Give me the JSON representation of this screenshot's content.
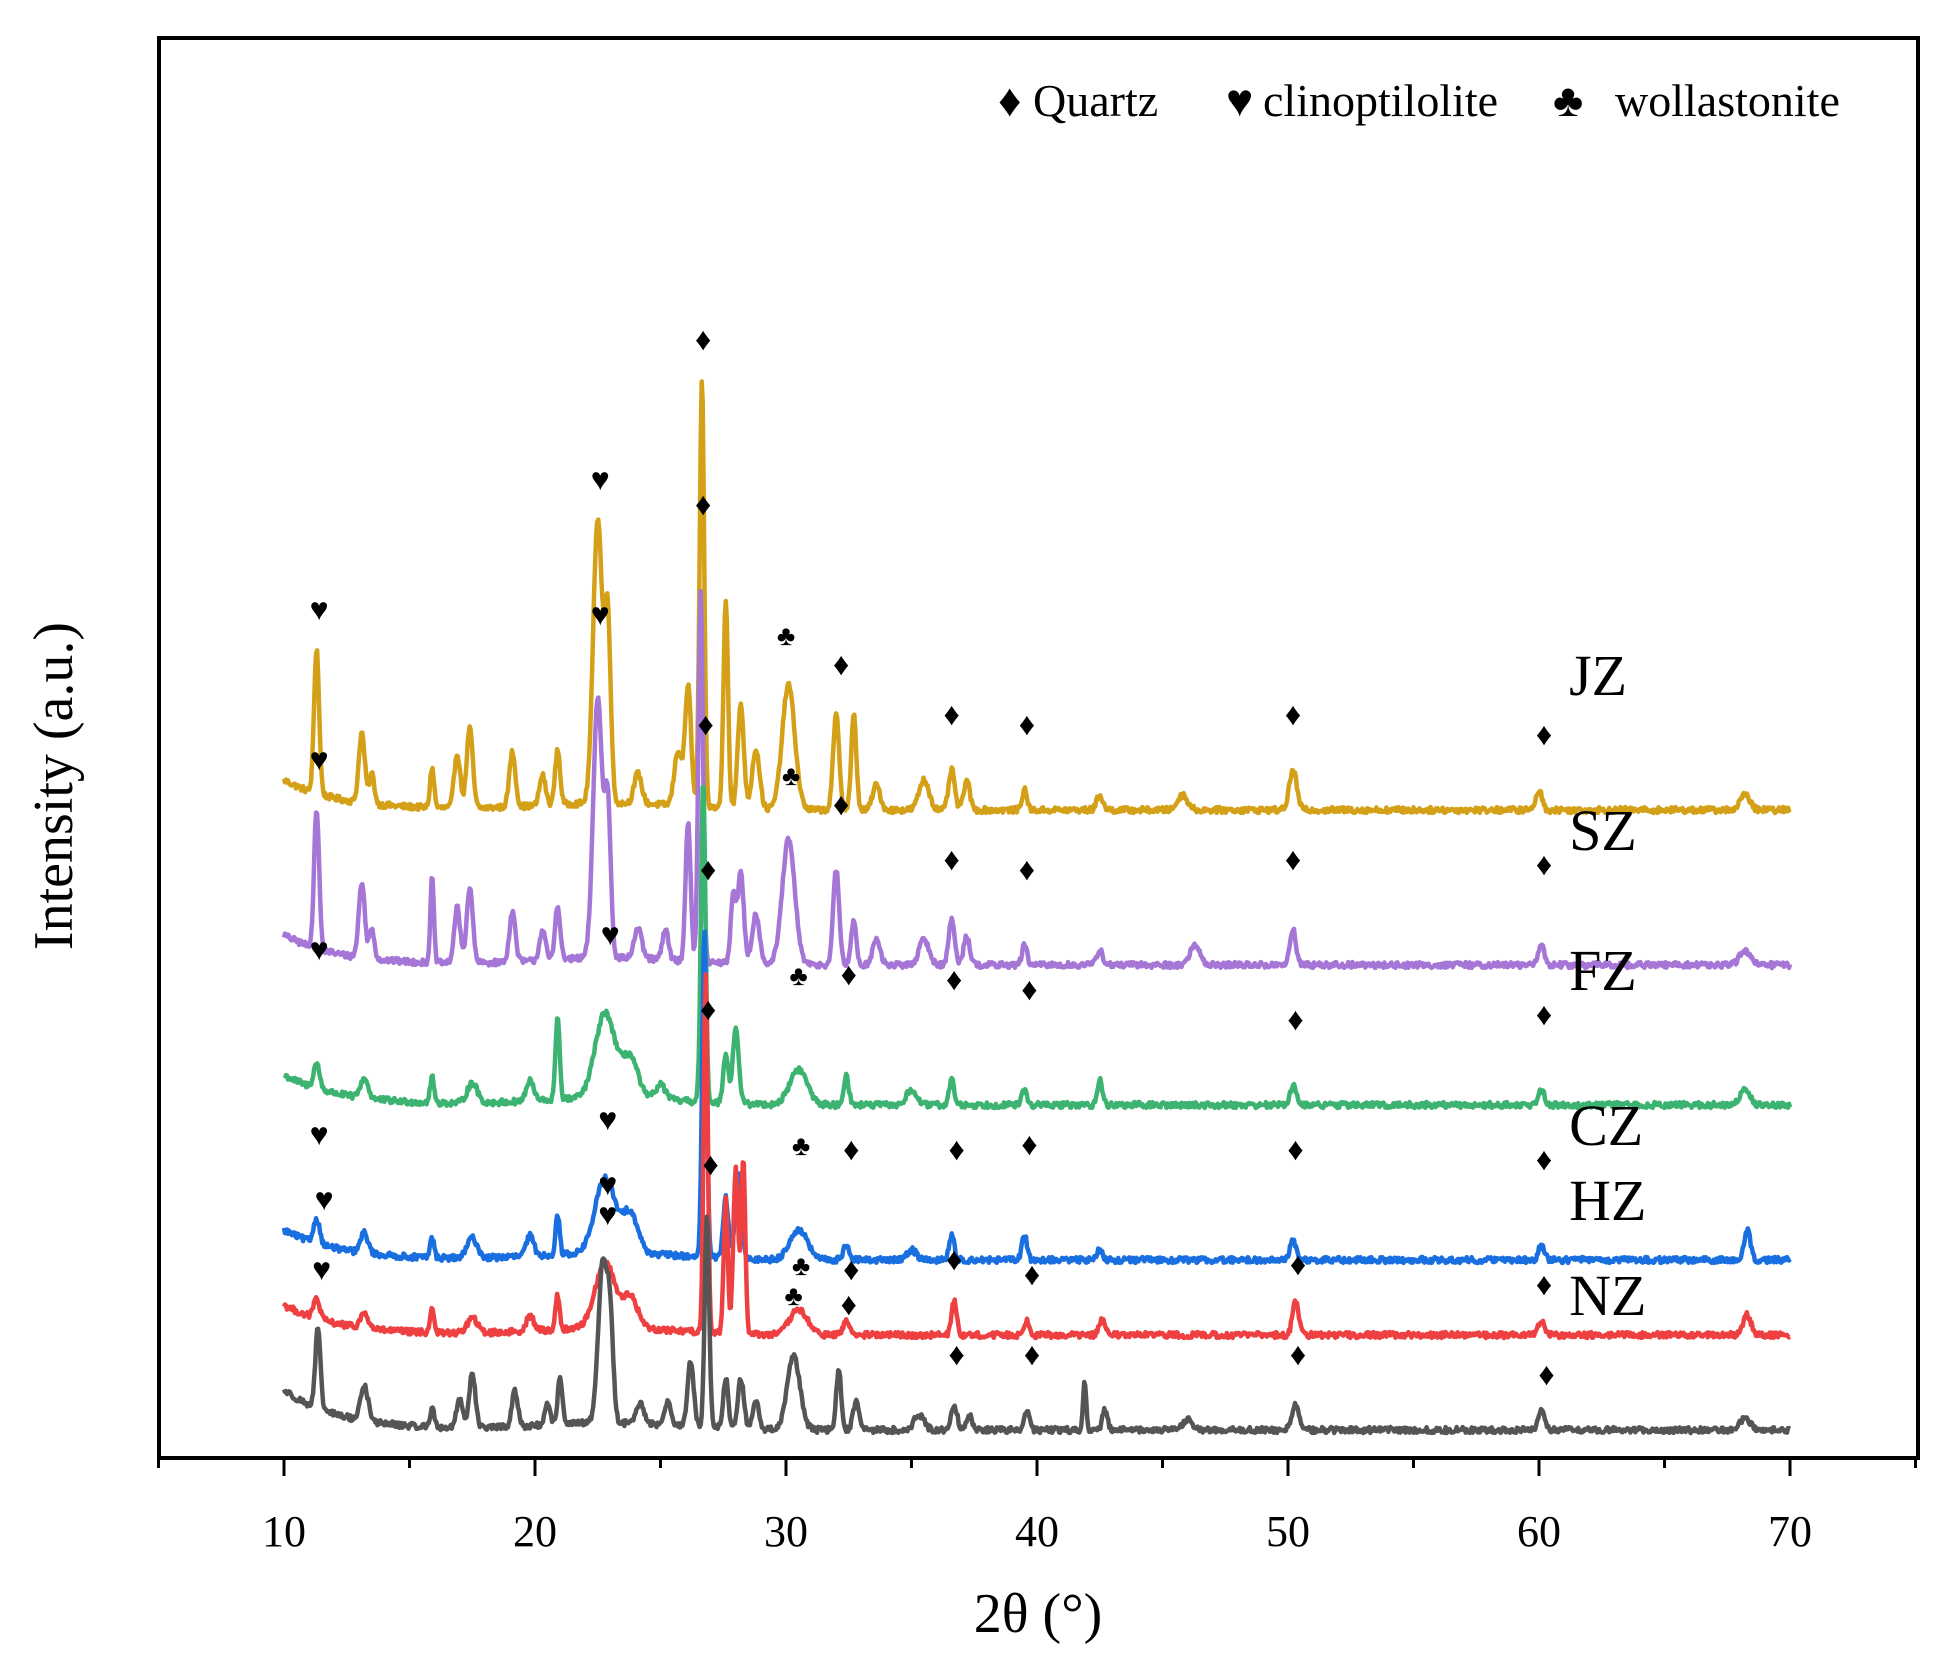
{
  "chart_data": {
    "type": "line",
    "title": "",
    "xlabel": "2θ (°)",
    "ylabel": "Intensity (a.u.)",
    "xlim": [
      5,
      75
    ],
    "xticks": [
      10,
      20,
      30,
      40,
      50,
      60,
      70
    ],
    "yticks": [],
    "legend": {
      "position": "top-right",
      "entries": [
        {
          "symbol": "diamond",
          "glyph": "♦",
          "label": "Quartz"
        },
        {
          "symbol": "heart",
          "glyph": "♥",
          "label": "clinoptilolite"
        },
        {
          "symbol": "club",
          "glyph": "♣",
          "label": "wollastonite"
        }
      ]
    },
    "series": [
      {
        "name": "JZ",
        "color": "#D4A017",
        "offset": 6.2,
        "background": 0.3,
        "peaks": [
          [
            11.3,
            1.45,
            0.1
          ],
          [
            13.1,
            0.7,
            0.12
          ],
          [
            13.5,
            0.3,
            0.1
          ],
          [
            15.9,
            0.4,
            0.08
          ],
          [
            16.9,
            0.55,
            0.12
          ],
          [
            17.4,
            0.8,
            0.12
          ],
          [
            19.1,
            0.55,
            0.12
          ],
          [
            20.3,
            0.3,
            0.12
          ],
          [
            20.9,
            0.55,
            0.1
          ],
          [
            22.5,
            2.85,
            0.18
          ],
          [
            22.9,
            1.8,
            0.12
          ],
          [
            24.1,
            0.3,
            0.15
          ],
          [
            25.7,
            0.55,
            0.15
          ],
          [
            26.1,
            1.2,
            0.12
          ],
          [
            26.65,
            4.25,
            0.09
          ],
          [
            27.6,
            2.1,
            0.09
          ],
          [
            28.2,
            1.05,
            0.12
          ],
          [
            28.8,
            0.6,
            0.15
          ],
          [
            30.1,
            1.25,
            0.25
          ],
          [
            32.0,
            0.95,
            0.12
          ],
          [
            32.7,
            0.95,
            0.1
          ],
          [
            33.6,
            0.25,
            0.15
          ],
          [
            35.5,
            0.3,
            0.2
          ],
          [
            36.6,
            0.4,
            0.12
          ],
          [
            37.2,
            0.3,
            0.12
          ],
          [
            39.5,
            0.2,
            0.1
          ],
          [
            42.5,
            0.15,
            0.12
          ],
          [
            45.8,
            0.15,
            0.2
          ],
          [
            50.2,
            0.4,
            0.15
          ],
          [
            60.0,
            0.2,
            0.12
          ],
          [
            68.2,
            0.15,
            0.2
          ]
        ],
        "markers": [
          {
            "type": "heart",
            "x": 11.4,
            "y": 8.1
          },
          {
            "type": "heart",
            "x": 22.6,
            "y": 9.4
          },
          {
            "type": "diamond",
            "x": 26.7,
            "y": 10.8
          },
          {
            "type": "club",
            "x": 30.0,
            "y": 7.85
          },
          {
            "type": "diamond",
            "x": 32.2,
            "y": 7.55
          },
          {
            "type": "diamond",
            "x": 36.6,
            "y": 7.05
          },
          {
            "type": "diamond",
            "x": 39.6,
            "y": 6.95
          },
          {
            "type": "diamond",
            "x": 50.2,
            "y": 7.05
          },
          {
            "type": "diamond",
            "x": 60.2,
            "y": 6.85
          }
        ]
      },
      {
        "name": "SZ",
        "color": "#A576D6",
        "offset": 4.65,
        "background": 0.3,
        "peaks": [
          [
            11.3,
            1.4,
            0.1
          ],
          [
            13.1,
            0.75,
            0.12
          ],
          [
            13.5,
            0.3,
            0.1
          ],
          [
            15.9,
            0.85,
            0.07
          ],
          [
            16.9,
            0.55,
            0.12
          ],
          [
            17.4,
            0.75,
            0.12
          ],
          [
            19.1,
            0.5,
            0.12
          ],
          [
            20.3,
            0.3,
            0.12
          ],
          [
            20.9,
            0.55,
            0.1
          ],
          [
            22.5,
            2.6,
            0.18
          ],
          [
            22.9,
            1.5,
            0.12
          ],
          [
            24.1,
            0.3,
            0.15
          ],
          [
            25.2,
            0.3,
            0.12
          ],
          [
            26.1,
            1.4,
            0.1
          ],
          [
            26.6,
            3.7,
            0.09
          ],
          [
            27.9,
            0.7,
            0.1
          ],
          [
            28.2,
            0.9,
            0.12
          ],
          [
            28.8,
            0.5,
            0.15
          ],
          [
            30.1,
            1.25,
            0.25
          ],
          [
            32.0,
            0.95,
            0.12
          ],
          [
            32.7,
            0.45,
            0.1
          ],
          [
            33.6,
            0.25,
            0.15
          ],
          [
            35.5,
            0.25,
            0.2
          ],
          [
            36.6,
            0.45,
            0.12
          ],
          [
            37.2,
            0.3,
            0.12
          ],
          [
            39.5,
            0.2,
            0.1
          ],
          [
            42.5,
            0.15,
            0.12
          ],
          [
            46.3,
            0.2,
            0.2
          ],
          [
            50.2,
            0.35,
            0.12
          ],
          [
            60.1,
            0.2,
            0.12
          ],
          [
            68.2,
            0.15,
            0.2
          ]
        ],
        "markers": [
          {
            "type": "heart",
            "x": 11.4,
            "y": 6.6
          },
          {
            "type": "heart",
            "x": 22.6,
            "y": 8.05
          },
          {
            "type": "diamond",
            "x": 26.7,
            "y": 9.15
          },
          {
            "type": "club",
            "x": 30.2,
            "y": 6.45
          },
          {
            "type": "diamond",
            "x": 32.2,
            "y": 6.15
          },
          {
            "type": "diamond",
            "x": 36.6,
            "y": 5.6
          },
          {
            "type": "diamond",
            "x": 39.6,
            "y": 5.5
          },
          {
            "type": "diamond",
            "x": 50.2,
            "y": 5.6
          },
          {
            "type": "diamond",
            "x": 60.2,
            "y": 5.55
          }
        ]
      },
      {
        "name": "FZ",
        "color": "#3CB371",
        "offset": 3.25,
        "background": 0.3,
        "peaks": [
          [
            11.3,
            0.25,
            0.12
          ],
          [
            13.2,
            0.2,
            0.15
          ],
          [
            15.9,
            0.25,
            0.08
          ],
          [
            17.5,
            0.2,
            0.2
          ],
          [
            19.8,
            0.2,
            0.15
          ],
          [
            20.9,
            0.85,
            0.08
          ],
          [
            22.8,
            0.85,
            0.4
          ],
          [
            23.8,
            0.4,
            0.3
          ],
          [
            25.0,
            0.15,
            0.2
          ],
          [
            26.7,
            3.2,
            0.09
          ],
          [
            27.6,
            0.5,
            0.1
          ],
          [
            28.0,
            0.75,
            0.12
          ],
          [
            30.5,
            0.35,
            0.35
          ],
          [
            32.4,
            0.3,
            0.1
          ],
          [
            35.0,
            0.15,
            0.2
          ],
          [
            36.6,
            0.25,
            0.1
          ],
          [
            39.5,
            0.15,
            0.1
          ],
          [
            42.5,
            0.25,
            0.1
          ],
          [
            50.2,
            0.2,
            0.12
          ],
          [
            60.1,
            0.15,
            0.12
          ],
          [
            68.2,
            0.15,
            0.2
          ]
        ],
        "markers": [
          {
            "type": "heart",
            "x": 11.4,
            "y": 4.7
          },
          {
            "type": "heart",
            "x": 23.0,
            "y": 4.85
          },
          {
            "type": "diamond",
            "x": 26.8,
            "y": 6.95
          },
          {
            "type": "club",
            "x": 30.5,
            "y": 4.45
          },
          {
            "type": "diamond",
            "x": 32.5,
            "y": 4.45
          },
          {
            "type": "diamond",
            "x": 36.7,
            "y": 4.4
          },
          {
            "type": "diamond",
            "x": 39.7,
            "y": 4.3
          },
          {
            "type": "diamond",
            "x": 50.3,
            "y": 4.0
          },
          {
            "type": "diamond",
            "x": 60.2,
            "y": 4.05
          }
        ]
      },
      {
        "name": "CZ",
        "color": "#1A6FE0",
        "offset": 1.7,
        "background": 0.3,
        "peaks": [
          [
            11.3,
            0.25,
            0.12
          ],
          [
            13.2,
            0.2,
            0.15
          ],
          [
            15.9,
            0.2,
            0.08
          ],
          [
            17.5,
            0.2,
            0.2
          ],
          [
            19.8,
            0.2,
            0.15
          ],
          [
            20.9,
            0.4,
            0.08
          ],
          [
            22.8,
            0.75,
            0.4
          ],
          [
            23.8,
            0.4,
            0.3
          ],
          [
            26.75,
            3.25,
            0.09
          ],
          [
            27.6,
            0.6,
            0.1
          ],
          [
            28.1,
            0.85,
            0.12
          ],
          [
            30.5,
            0.3,
            0.35
          ],
          [
            32.4,
            0.15,
            0.12
          ],
          [
            35.0,
            0.1,
            0.2
          ],
          [
            36.6,
            0.25,
            0.1
          ],
          [
            39.5,
            0.25,
            0.1
          ],
          [
            42.5,
            0.1,
            0.12
          ],
          [
            50.2,
            0.2,
            0.12
          ],
          [
            60.1,
            0.15,
            0.12
          ],
          [
            68.3,
            0.3,
            0.12
          ]
        ],
        "markers": [
          {
            "type": "heart",
            "x": 11.4,
            "y": 2.85
          },
          {
            "type": "heart",
            "x": 22.9,
            "y": 3.0
          },
          {
            "type": "diamond",
            "x": 26.9,
            "y": 5.5
          },
          {
            "type": "club",
            "x": 30.6,
            "y": 2.75
          },
          {
            "type": "diamond",
            "x": 32.6,
            "y": 2.7
          },
          {
            "type": "diamond",
            "x": 36.8,
            "y": 2.7
          },
          {
            "type": "diamond",
            "x": 39.7,
            "y": 2.75
          },
          {
            "type": "diamond",
            "x": 50.3,
            "y": 2.7
          },
          {
            "type": "diamond",
            "x": 60.2,
            "y": 2.6
          }
        ]
      },
      {
        "name": "HZ",
        "color": "#EE4040",
        "offset": 0.95,
        "background": 0.3,
        "peaks": [
          [
            11.3,
            0.2,
            0.12
          ],
          [
            13.2,
            0.15,
            0.15
          ],
          [
            15.9,
            0.25,
            0.08
          ],
          [
            17.5,
            0.15,
            0.2
          ],
          [
            19.8,
            0.15,
            0.15
          ],
          [
            20.9,
            0.35,
            0.08
          ],
          [
            22.8,
            0.65,
            0.4
          ],
          [
            23.8,
            0.3,
            0.3
          ],
          [
            26.8,
            3.6,
            0.08
          ],
          [
            27.6,
            1.35,
            0.08
          ],
          [
            28.0,
            1.65,
            0.1
          ],
          [
            28.3,
            1.75,
            0.08
          ],
          [
            30.5,
            0.25,
            0.35
          ],
          [
            32.4,
            0.15,
            0.12
          ],
          [
            36.7,
            0.35,
            0.1
          ],
          [
            39.6,
            0.15,
            0.1
          ],
          [
            42.6,
            0.15,
            0.12
          ],
          [
            50.3,
            0.35,
            0.12
          ],
          [
            60.1,
            0.15,
            0.12
          ],
          [
            68.3,
            0.2,
            0.15
          ]
        ],
        "markers": [
          {
            "type": "heart",
            "x": 11.6,
            "y": 2.2
          },
          {
            "type": "heart",
            "x": 22.9,
            "y": 2.35
          },
          {
            "type": "diamond",
            "x": 26.9,
            "y": 4.1
          },
          {
            "type": "club",
            "x": 30.6,
            "y": 1.55
          },
          {
            "type": "diamond",
            "x": 32.6,
            "y": 1.5
          },
          {
            "type": "diamond",
            "x": 36.7,
            "y": 1.6
          },
          {
            "type": "diamond",
            "x": 39.8,
            "y": 1.45
          },
          {
            "type": "diamond",
            "x": 50.4,
            "y": 1.55
          },
          {
            "type": "diamond",
            "x": 60.2,
            "y": 1.35
          }
        ]
      },
      {
        "name": "NZ",
        "color": "#555555",
        "offset": 0.0,
        "background": 0.4,
        "peaks": [
          [
            11.35,
            0.8,
            0.1
          ],
          [
            13.2,
            0.35,
            0.15
          ],
          [
            15.9,
            0.2,
            0.08
          ],
          [
            17.0,
            0.3,
            0.12
          ],
          [
            17.5,
            0.55,
            0.12
          ],
          [
            19.2,
            0.35,
            0.12
          ],
          [
            20.5,
            0.2,
            0.1
          ],
          [
            21.0,
            0.45,
            0.1
          ],
          [
            22.7,
            1.6,
            0.18
          ],
          [
            23.0,
            0.9,
            0.12
          ],
          [
            24.2,
            0.2,
            0.15
          ],
          [
            25.3,
            0.25,
            0.12
          ],
          [
            26.2,
            0.65,
            0.12
          ],
          [
            26.85,
            2.1,
            0.09
          ],
          [
            27.6,
            0.5,
            0.1
          ],
          [
            28.2,
            0.5,
            0.12
          ],
          [
            28.8,
            0.3,
            0.12
          ],
          [
            30.3,
            0.75,
            0.25
          ],
          [
            32.1,
            0.6,
            0.1
          ],
          [
            32.8,
            0.3,
            0.12
          ],
          [
            35.3,
            0.15,
            0.2
          ],
          [
            36.7,
            0.25,
            0.12
          ],
          [
            37.3,
            0.15,
            0.12
          ],
          [
            39.6,
            0.2,
            0.1
          ],
          [
            41.9,
            0.5,
            0.06
          ],
          [
            42.7,
            0.2,
            0.1
          ],
          [
            46.0,
            0.1,
            0.2
          ],
          [
            50.3,
            0.25,
            0.15
          ],
          [
            60.1,
            0.2,
            0.12
          ],
          [
            68.2,
            0.12,
            0.2
          ]
        ],
        "markers": [
          {
            "type": "heart",
            "x": 11.5,
            "y": 1.5
          },
          {
            "type": "heart",
            "x": 22.9,
            "y": 2.05
          },
          {
            "type": "diamond",
            "x": 27.0,
            "y": 2.55
          },
          {
            "type": "club",
            "x": 30.3,
            "y": 1.25
          },
          {
            "type": "diamond",
            "x": 32.5,
            "y": 1.15
          },
          {
            "type": "diamond",
            "x": 36.8,
            "y": 0.65
          },
          {
            "type": "diamond",
            "x": 39.8,
            "y": 0.65
          },
          {
            "type": "diamond",
            "x": 50.4,
            "y": 0.65
          },
          {
            "type": "diamond",
            "x": 60.3,
            "y": 0.45
          }
        ]
      }
    ]
  }
}
